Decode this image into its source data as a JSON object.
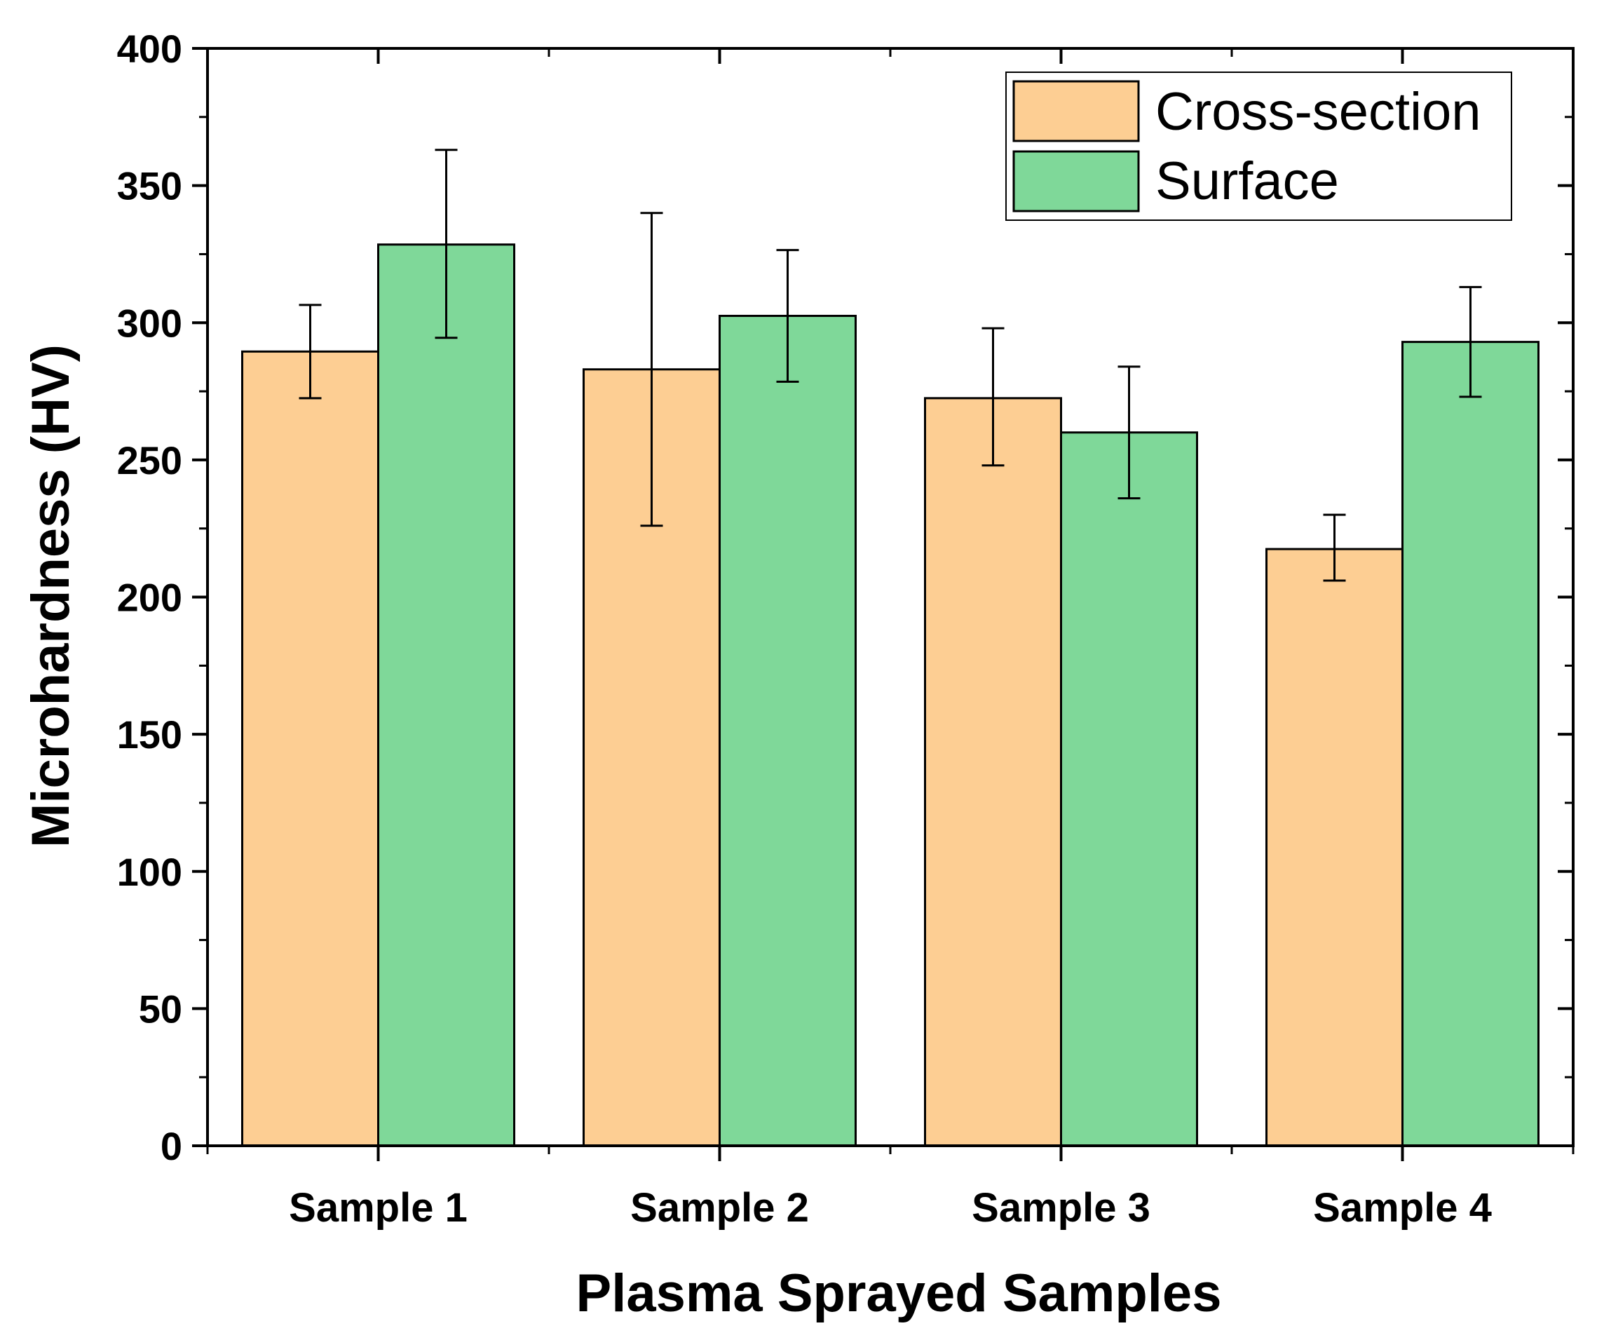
{
  "chart_data": {
    "type": "bar",
    "title": "",
    "xlabel": "Plasma Sprayed Samples",
    "ylabel": "Microhardness (HV)",
    "ylim": [
      0,
      400
    ],
    "yticks": [
      0,
      50,
      100,
      150,
      200,
      250,
      300,
      350,
      400
    ],
    "grid": false,
    "legend_position": "top-right",
    "categories": [
      "Sample 1",
      "Sample 2",
      "Sample 3",
      "Sample 4"
    ],
    "series": [
      {
        "name": "Cross-section",
        "color": "#FDCE93",
        "values": [
          289.5,
          283,
          272.5,
          217.5
        ],
        "error_low": [
          272.5,
          226,
          248,
          206
        ],
        "error_high": [
          306.5,
          340,
          298,
          230
        ]
      },
      {
        "name": "Surface",
        "color": "#7FD899",
        "values": [
          328.5,
          302.5,
          260,
          293
        ],
        "error_low": [
          294.5,
          278.5,
          236,
          273
        ],
        "error_high": [
          363,
          326.5,
          284,
          313
        ]
      }
    ]
  }
}
